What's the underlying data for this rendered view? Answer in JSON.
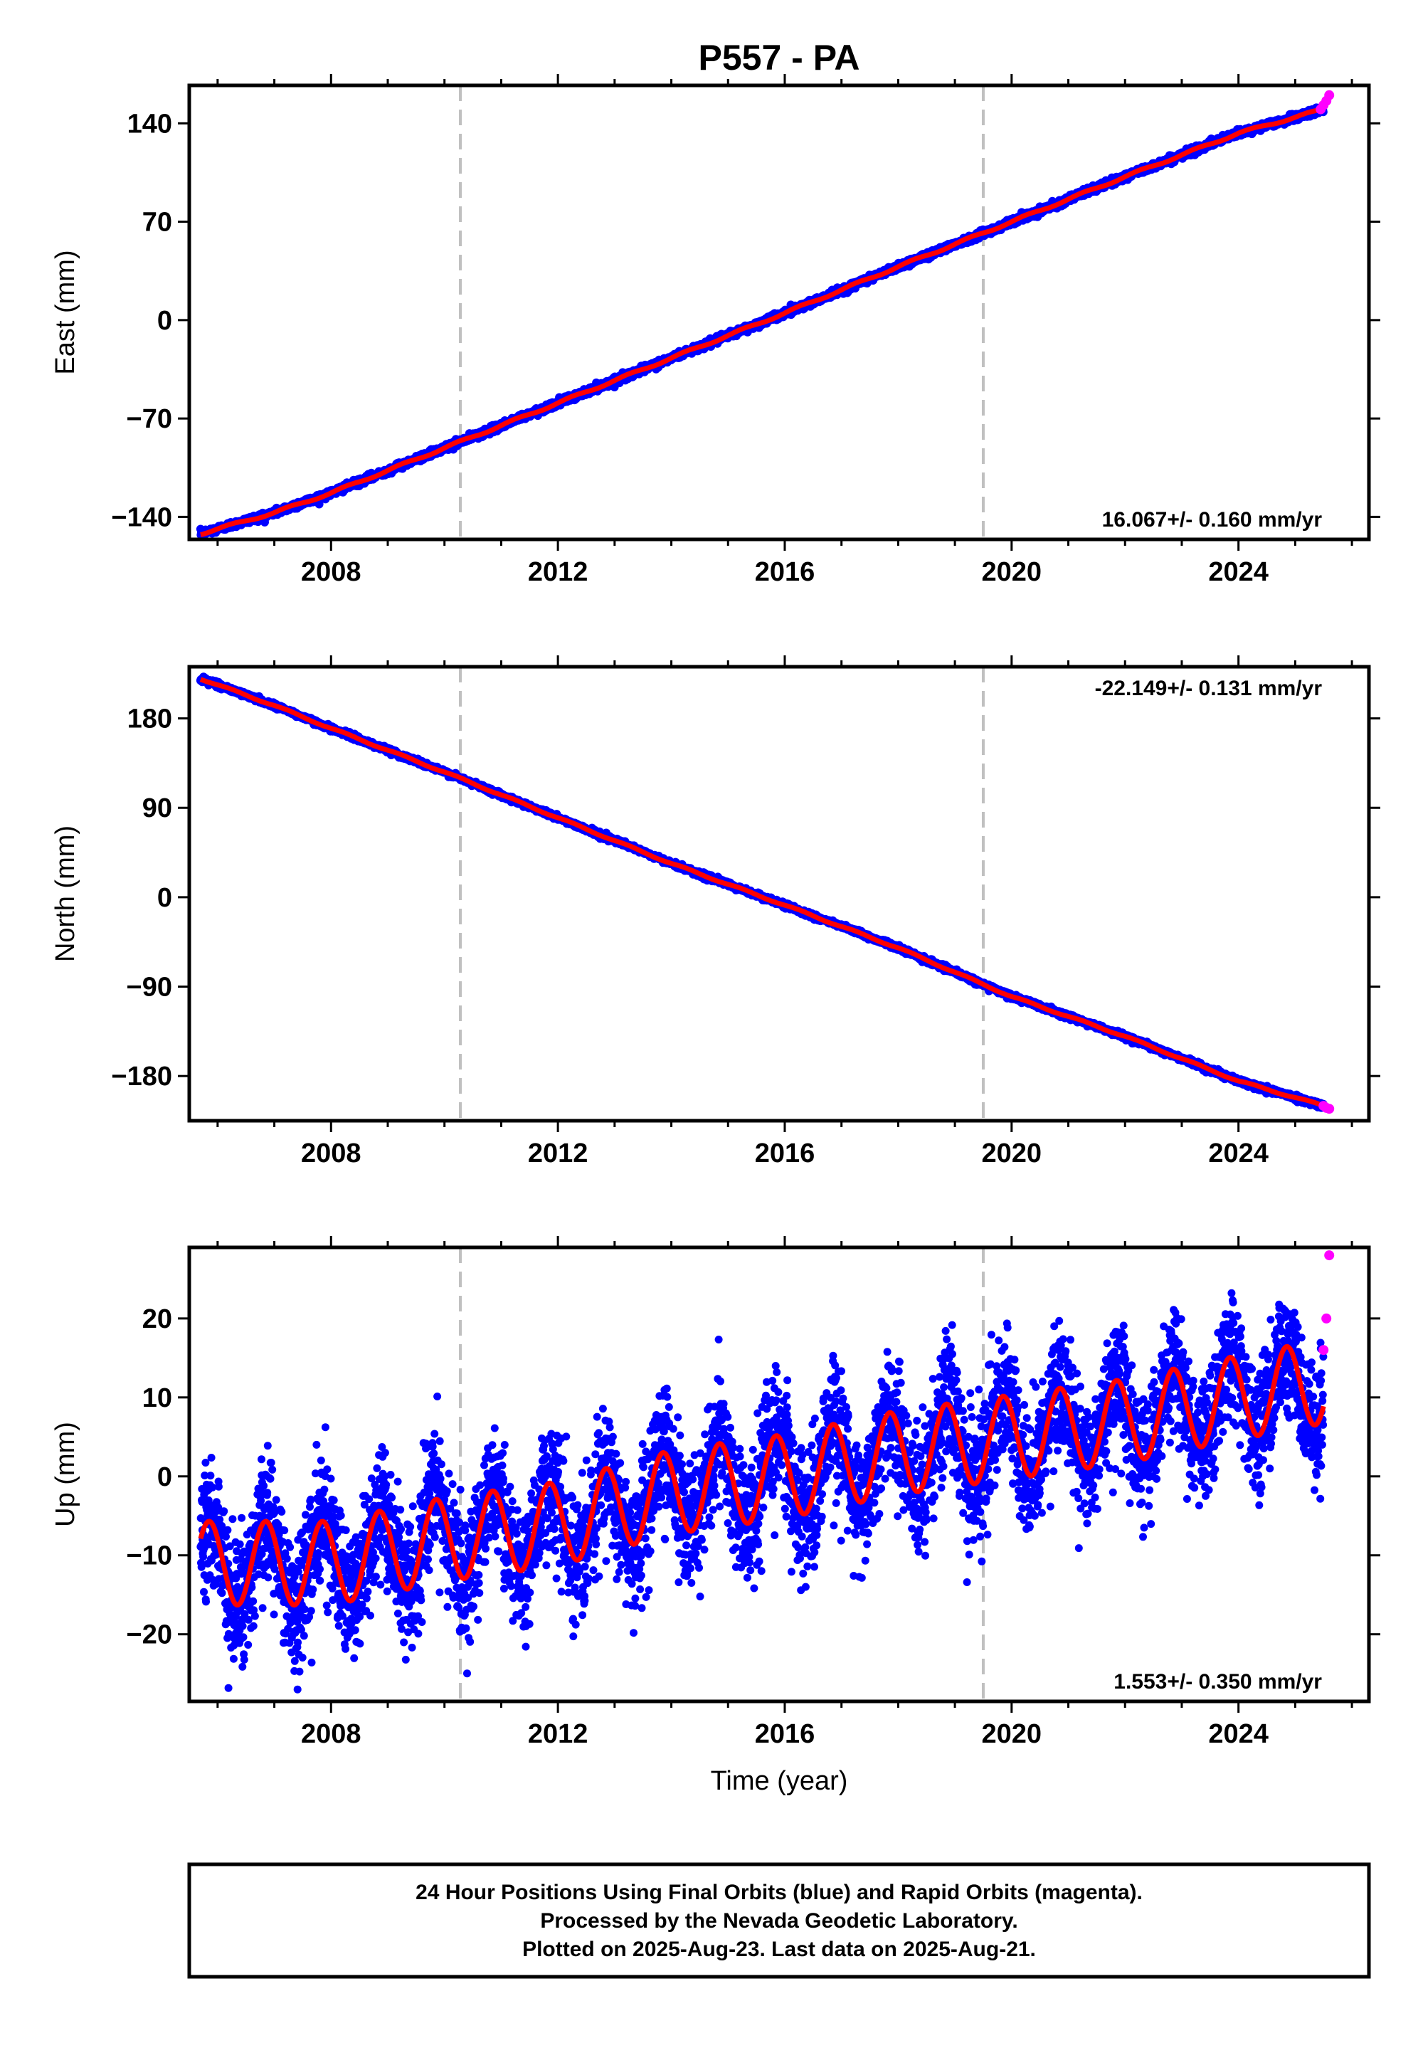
{
  "title": "P557 - PA",
  "colors": {
    "final_points": "#0000ff",
    "rapid_points": "#ff00ff",
    "model_fit": "#ff0000",
    "event_lines": "#c0c0c0",
    "frame": "#000000"
  },
  "x_axis": {
    "label": "Time (year)",
    "range": [
      2005.5,
      2026.3
    ],
    "ticks": [
      "2008",
      "2012",
      "2016",
      "2020",
      "2024"
    ]
  },
  "event_lines_years": [
    2010.28,
    2019.5
  ],
  "footer": {
    "line1": "24 Hour Positions Using Final Orbits (blue) and Rapid Orbits (magenta).",
    "line2": "Processed by the Nevada Geodetic Laboratory.",
    "line3": "Plotted on 2025-Aug-23. Last data on 2025-Aug-21."
  },
  "chart_data": [
    {
      "type": "scatter",
      "component": "east",
      "ylabel": "East (mm)",
      "ylim": [
        -156,
        167
      ],
      "yticks": [
        "140",
        "70",
        "0",
        "−70",
        "−140"
      ],
      "rate_text": "16.067+/- 0.160 mm/yr",
      "series": [
        {
          "name": "Final Orbits (blue)",
          "x": [
            2005.7,
            2007.0,
            2008.0,
            2010.0,
            2012.0,
            2014.0,
            2016.0,
            2018.0,
            2020.0,
            2022.0,
            2024.0,
            2025.5
          ],
          "y": [
            -152,
            -137,
            -123,
            -91,
            -59,
            -27,
            5,
            38,
            70,
            102,
            133,
            150
          ]
        },
        {
          "name": "Rapid Orbits (magenta)",
          "x": [
            2025.45,
            2025.5,
            2025.55,
            2025.6
          ],
          "y": [
            150,
            153,
            156,
            160
          ]
        }
      ],
      "fit": {
        "rate": 16.067,
        "intercept_2016": 4.5,
        "annual_amplitude": 1.5
      }
    },
    {
      "type": "scatter",
      "component": "north",
      "ylabel": "North (mm)",
      "ylim": [
        -225,
        232
      ],
      "yticks": [
        "180",
        "90",
        "0",
        "−90",
        "−180"
      ],
      "rate_text": "-22.149+/- 0.131 mm/yr",
      "series": [
        {
          "name": "Final Orbits (blue)",
          "x": [
            2005.7,
            2007.0,
            2008.0,
            2010.0,
            2012.0,
            2014.0,
            2016.0,
            2018.0,
            2020.0,
            2022.0,
            2024.0,
            2025.5
          ],
          "y": [
            220,
            193,
            170,
            126,
            80,
            34,
            -8,
            -51,
            -100,
            -140,
            -185,
            -210
          ]
        },
        {
          "name": "Rapid Orbits (magenta)",
          "x": [
            2025.5,
            2025.55,
            2025.6
          ],
          "y": [
            -210,
            -212,
            -213
          ]
        }
      ],
      "fit": {
        "rate": -22.149,
        "intercept_2016": -2,
        "annual_amplitude": 1.5
      }
    },
    {
      "type": "scatter",
      "component": "up",
      "ylabel": "Up (mm)",
      "ylim": [
        -28.5,
        29
      ],
      "yticks": [
        "20",
        "10",
        "0",
        "−10",
        "−20"
      ],
      "rate_text": "1.553+/- 0.350 mm/yr",
      "series": [
        {
          "name": "Final Orbits (blue)",
          "x": [
            2005.7,
            2008.0,
            2010.0,
            2012.0,
            2014.0,
            2016.0,
            2018.0,
            2020.0,
            2022.0,
            2024.0,
            2025.5
          ],
          "y": [
            -11,
            -11,
            -8,
            -6,
            -2,
            0,
            3,
            5,
            7,
            10,
            12
          ]
        },
        {
          "name": "Rapid Orbits (magenta)",
          "x": [
            2025.5,
            2025.55,
            2025.6
          ],
          "y": [
            16,
            20,
            28
          ]
        }
      ],
      "fit": {
        "rate": 1.553,
        "intercept_2016": 0.4,
        "annual_amplitude": 5.3,
        "annual_phase_peak": 0.85
      },
      "noise_sd": 4.0
    }
  ]
}
